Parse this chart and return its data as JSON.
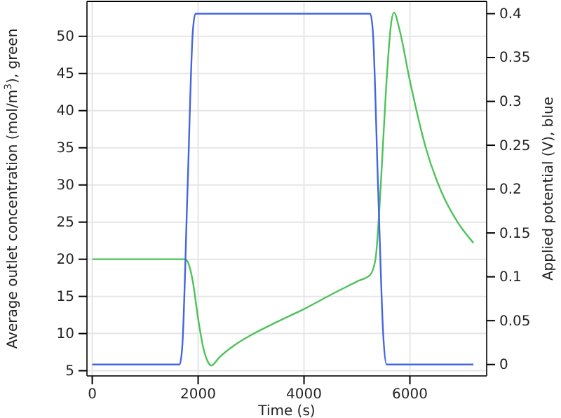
{
  "chart_data": {
    "type": "line",
    "xlabel": "Time (s)",
    "ylabel": "Average outlet concentration (mol/m$^{3}$), green",
    "y2label": "Applied potential (V), blue",
    "xlim": [
      -100,
      7450
    ],
    "xticks": [
      0,
      2000,
      4000,
      6000
    ],
    "ylim": [
      4.3,
      54.7
    ],
    "yticks": [
      5,
      10,
      15,
      20,
      25,
      30,
      35,
      40,
      45,
      50
    ],
    "y2lim": [
      -0.013,
      0.414
    ],
    "y2ticks": [
      0,
      0.05,
      0.1,
      0.15,
      0.2,
      0.25,
      0.3,
      0.35,
      0.4
    ],
    "grid": true,
    "line_style": "solid",
    "marker": "none",
    "series": [
      {
        "color": "#4ec25a",
        "x": [
          0,
          1750,
          1800,
          1900,
          2000,
          2100,
          2200,
          2250,
          2400,
          2700,
          3000,
          3500,
          4000,
          4500,
          5000,
          5250,
          5350,
          5450,
          5550,
          5650,
          5700,
          5800,
          6000,
          6300,
          6600,
          6900,
          7200
        ],
        "values": [
          20,
          20,
          19.7,
          17,
          12,
          8,
          6,
          5.7,
          6.8,
          8.5,
          9.8,
          11.6,
          13.3,
          15.2,
          17,
          17.9,
          20,
          30,
          43,
          52,
          53.2,
          51,
          44,
          35,
          29,
          25,
          22.2
        ]
      },
      {
        "color": "#4466e0",
        "axis": "y2",
        "x": [
          0,
          1650,
          1700,
          1800,
          1900,
          1950,
          5250,
          5300,
          5400,
          5500,
          5560,
          7200
        ],
        "values": [
          0,
          0,
          0.02,
          0.2,
          0.38,
          0.4,
          0.4,
          0.38,
          0.2,
          0.03,
          0,
          0
        ]
      }
    ]
  }
}
